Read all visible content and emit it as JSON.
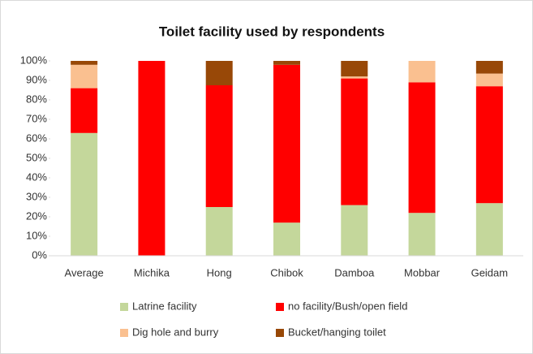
{
  "chart_data": {
    "type": "stacked_bar",
    "title": "Toilet facility used by respondents",
    "categories": [
      "Average",
      "Michika",
      "Hong",
      "Chibok",
      "Damboa",
      "Mobbar",
      "Geidam"
    ],
    "series": [
      {
        "name": "Latrine facility",
        "color": "#c4d79b",
        "values": [
          63,
          0,
          25,
          17,
          26,
          22,
          27
        ]
      },
      {
        "name": "no facility/Bush/open field",
        "color": "#ff0000",
        "values": [
          23,
          100,
          62.5,
          81,
          65,
          67,
          60
        ]
      },
      {
        "name": "Dig hole and burry",
        "color": "#fac090",
        "values": [
          12,
          0,
          0,
          0,
          1,
          11,
          6.5
        ]
      },
      {
        "name": "Bucket/hanging toilet",
        "color": "#984807",
        "values": [
          2,
          0,
          12.5,
          2,
          8,
          0,
          6.5
        ]
      }
    ],
    "ylim": [
      0,
      100
    ],
    "yticks": [
      {
        "value": 0,
        "label": "0%"
      },
      {
        "value": 10,
        "label": "10%"
      },
      {
        "value": 20,
        "label": "20%"
      },
      {
        "value": 30,
        "label": "30%"
      },
      {
        "value": 40,
        "label": "40%"
      },
      {
        "value": 50,
        "label": "50%"
      },
      {
        "value": 60,
        "label": "60%"
      },
      {
        "value": 70,
        "label": "70%"
      },
      {
        "value": 80,
        "label": "80%"
      },
      {
        "value": 90,
        "label": "90%"
      },
      {
        "value": 100,
        "label": "100%"
      }
    ],
    "legend": "bottom"
  }
}
